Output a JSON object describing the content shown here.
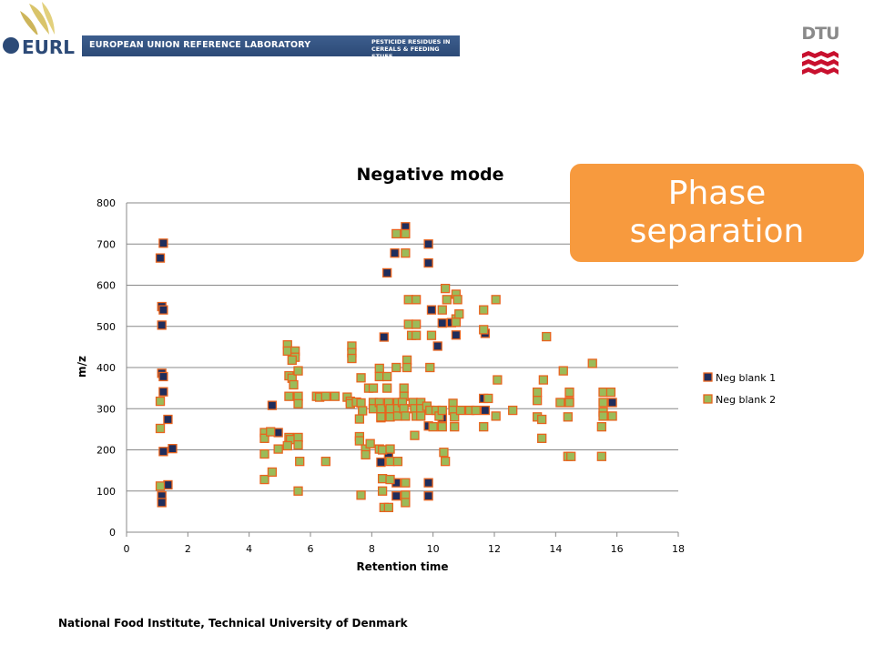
{
  "header": {
    "logo_text": "EURL",
    "banner_title": "EUROPEAN UNION REFERENCE LABORATORY",
    "banner_sub_line1": "PESTICIDE RESIDUES IN",
    "banner_sub_line2": "CEREALS & FEEDING STUFF",
    "dtu_text": "DTU"
  },
  "callout": {
    "line1": "Phase",
    "line2": "separation"
  },
  "footer": "National Food Institute, Technical University of Denmark",
  "colors": {
    "blank1_fill": "#1f2d5c",
    "blank2_fill": "#9bbb59",
    "marker_edge": "#e8641e",
    "grid": "#888888",
    "callout": "#f79a3e"
  },
  "chart_data": {
    "type": "scatter",
    "title": "Negative mode",
    "xlabel": "Retention time",
    "ylabel": "m/z",
    "xlim": [
      0,
      18
    ],
    "ylim": [
      0,
      800
    ],
    "xticks": [
      0,
      2,
      4,
      6,
      8,
      10,
      12,
      14,
      16,
      18
    ],
    "yticks": [
      0,
      100,
      200,
      300,
      400,
      500,
      600,
      700,
      800
    ],
    "grid": "horizontal",
    "legend": "right",
    "series": [
      {
        "name": "Neg blank 1",
        "points": [
          [
            1.2,
            702
          ],
          [
            1.1,
            666
          ],
          [
            1.15,
            548
          ],
          [
            1.2,
            540
          ],
          [
            1.15,
            503
          ],
          [
            1.15,
            386
          ],
          [
            1.2,
            378
          ],
          [
            1.2,
            341
          ],
          [
            1.35,
            274
          ],
          [
            1.2,
            196
          ],
          [
            1.5,
            203
          ],
          [
            1.35,
            115
          ],
          [
            1.15,
            88
          ],
          [
            1.15,
            72
          ],
          [
            4.75,
            308
          ],
          [
            4.95,
            242
          ],
          [
            8.5,
            630
          ],
          [
            8.75,
            678
          ],
          [
            9.1,
            742
          ],
          [
            9.85,
            700
          ],
          [
            9.85,
            654
          ],
          [
            9.95,
            540
          ],
          [
            10.15,
            452
          ],
          [
            10.3,
            508
          ],
          [
            10.6,
            509
          ],
          [
            10.75,
            479
          ],
          [
            8.4,
            474
          ],
          [
            8.3,
            278
          ],
          [
            8.3,
            170
          ],
          [
            8.55,
            190
          ],
          [
            8.8,
            120
          ],
          [
            8.8,
            88
          ],
          [
            9.85,
            120
          ],
          [
            9.85,
            88
          ],
          [
            9.85,
            258
          ],
          [
            10.3,
            278
          ],
          [
            11.65,
            325
          ],
          [
            11.7,
            483
          ],
          [
            11.7,
            296
          ],
          [
            15.85,
            315
          ]
        ]
      },
      {
        "name": "Neg blank 2",
        "points": [
          [
            1.1,
            318
          ],
          [
            1.1,
            252
          ],
          [
            1.1,
            112
          ],
          [
            4.5,
            242
          ],
          [
            4.5,
            228
          ],
          [
            4.5,
            190
          ],
          [
            4.5,
            128
          ],
          [
            4.75,
            146
          ],
          [
            4.95,
            202
          ],
          [
            4.7,
            244
          ],
          [
            5.25,
            455
          ],
          [
            5.25,
            440
          ],
          [
            5.3,
            380
          ],
          [
            5.4,
            374
          ],
          [
            5.45,
            358
          ],
          [
            5.5,
            440
          ],
          [
            5.5,
            425
          ],
          [
            5.4,
            418
          ],
          [
            5.6,
            392
          ],
          [
            5.3,
            330
          ],
          [
            5.6,
            330
          ],
          [
            5.6,
            312
          ],
          [
            5.3,
            230
          ],
          [
            5.35,
            225
          ],
          [
            5.25,
            210
          ],
          [
            5.6,
            230
          ],
          [
            5.6,
            212
          ],
          [
            5.65,
            172
          ],
          [
            5.6,
            100
          ],
          [
            6.2,
            330
          ],
          [
            6.3,
            328
          ],
          [
            6.5,
            330
          ],
          [
            6.5,
            172
          ],
          [
            6.8,
            330
          ],
          [
            7.2,
            328
          ],
          [
            7.3,
            318
          ],
          [
            7.3,
            312
          ],
          [
            7.35,
            452
          ],
          [
            7.35,
            436
          ],
          [
            7.35,
            422
          ],
          [
            7.5,
            316
          ],
          [
            7.65,
            375
          ],
          [
            7.65,
            314
          ],
          [
            7.7,
            295
          ],
          [
            7.6,
            275
          ],
          [
            7.6,
            232
          ],
          [
            7.6,
            222
          ],
          [
            7.8,
            202
          ],
          [
            7.8,
            188
          ],
          [
            7.95,
            215
          ],
          [
            7.65,
            90
          ],
          [
            7.9,
            350
          ],
          [
            8.05,
            350
          ],
          [
            8.05,
            315
          ],
          [
            8.05,
            300
          ],
          [
            8.25,
            398
          ],
          [
            8.25,
            378
          ],
          [
            8.25,
            315
          ],
          [
            8.3,
            300
          ],
          [
            8.3,
            280
          ],
          [
            8.25,
            202
          ],
          [
            8.35,
            200
          ],
          [
            8.35,
            130
          ],
          [
            8.35,
            100
          ],
          [
            8.4,
            60
          ],
          [
            8.5,
            378
          ],
          [
            8.5,
            350
          ],
          [
            8.55,
            315
          ],
          [
            8.6,
            300
          ],
          [
            8.6,
            280
          ],
          [
            8.6,
            202
          ],
          [
            8.6,
            172
          ],
          [
            8.6,
            128
          ],
          [
            8.55,
            60
          ],
          [
            8.8,
            725
          ],
          [
            8.8,
            400
          ],
          [
            8.85,
            315
          ],
          [
            8.85,
            300
          ],
          [
            8.85,
            282
          ],
          [
            8.85,
            172
          ],
          [
            9.05,
            350
          ],
          [
            9.05,
            330
          ],
          [
            9.0,
            315
          ],
          [
            9.05,
            300
          ],
          [
            9.1,
            282
          ],
          [
            9.15,
            418
          ],
          [
            9.15,
            400
          ],
          [
            9.1,
            725
          ],
          [
            9.1,
            678
          ],
          [
            9.2,
            565
          ],
          [
            9.2,
            505
          ],
          [
            9.3,
            478
          ],
          [
            9.1,
            120
          ],
          [
            9.1,
            90
          ],
          [
            9.1,
            72
          ],
          [
            9.35,
            315
          ],
          [
            9.4,
            300
          ],
          [
            9.45,
            565
          ],
          [
            9.45,
            505
          ],
          [
            9.45,
            478
          ],
          [
            9.45,
            282
          ],
          [
            9.4,
            235
          ],
          [
            9.6,
            315
          ],
          [
            9.6,
            300
          ],
          [
            9.6,
            282
          ],
          [
            9.8,
            306
          ],
          [
            9.9,
            400
          ],
          [
            9.9,
            296
          ],
          [
            9.95,
            478
          ],
          [
            10.0,
            256
          ],
          [
            10.1,
            296
          ],
          [
            10.2,
            282
          ],
          [
            10.3,
            256
          ],
          [
            10.3,
            296
          ],
          [
            10.35,
            194
          ],
          [
            10.4,
            172
          ],
          [
            10.4,
            592
          ],
          [
            10.3,
            540
          ],
          [
            10.45,
            565
          ],
          [
            10.65,
            313
          ],
          [
            10.65,
            296
          ],
          [
            10.7,
            256
          ],
          [
            10.7,
            280
          ],
          [
            10.75,
            518
          ],
          [
            10.75,
            510
          ],
          [
            10.75,
            578
          ],
          [
            10.8,
            565
          ],
          [
            10.85,
            530
          ],
          [
            10.9,
            296
          ],
          [
            11.2,
            296
          ],
          [
            11.4,
            296
          ],
          [
            11.65,
            540
          ],
          [
            11.65,
            492
          ],
          [
            11.65,
            256
          ],
          [
            11.8,
            325
          ],
          [
            12.05,
            565
          ],
          [
            12.05,
            282
          ],
          [
            12.1,
            370
          ],
          [
            12.6,
            296
          ],
          [
            13.4,
            340
          ],
          [
            13.4,
            320
          ],
          [
            13.4,
            280
          ],
          [
            13.55,
            274
          ],
          [
            13.55,
            228
          ],
          [
            13.6,
            370
          ],
          [
            13.7,
            475
          ],
          [
            14.15,
            315
          ],
          [
            14.25,
            392
          ],
          [
            14.45,
            340
          ],
          [
            14.45,
            317
          ],
          [
            14.45,
            315
          ],
          [
            14.4,
            280
          ],
          [
            14.4,
            184
          ],
          [
            14.5,
            184
          ],
          [
            15.2,
            410
          ],
          [
            15.55,
            340
          ],
          [
            15.55,
            315
          ],
          [
            15.55,
            292
          ],
          [
            15.55,
            282
          ],
          [
            15.5,
            256
          ],
          [
            15.5,
            184
          ],
          [
            15.8,
            340
          ],
          [
            15.85,
            282
          ]
        ]
      }
    ]
  }
}
